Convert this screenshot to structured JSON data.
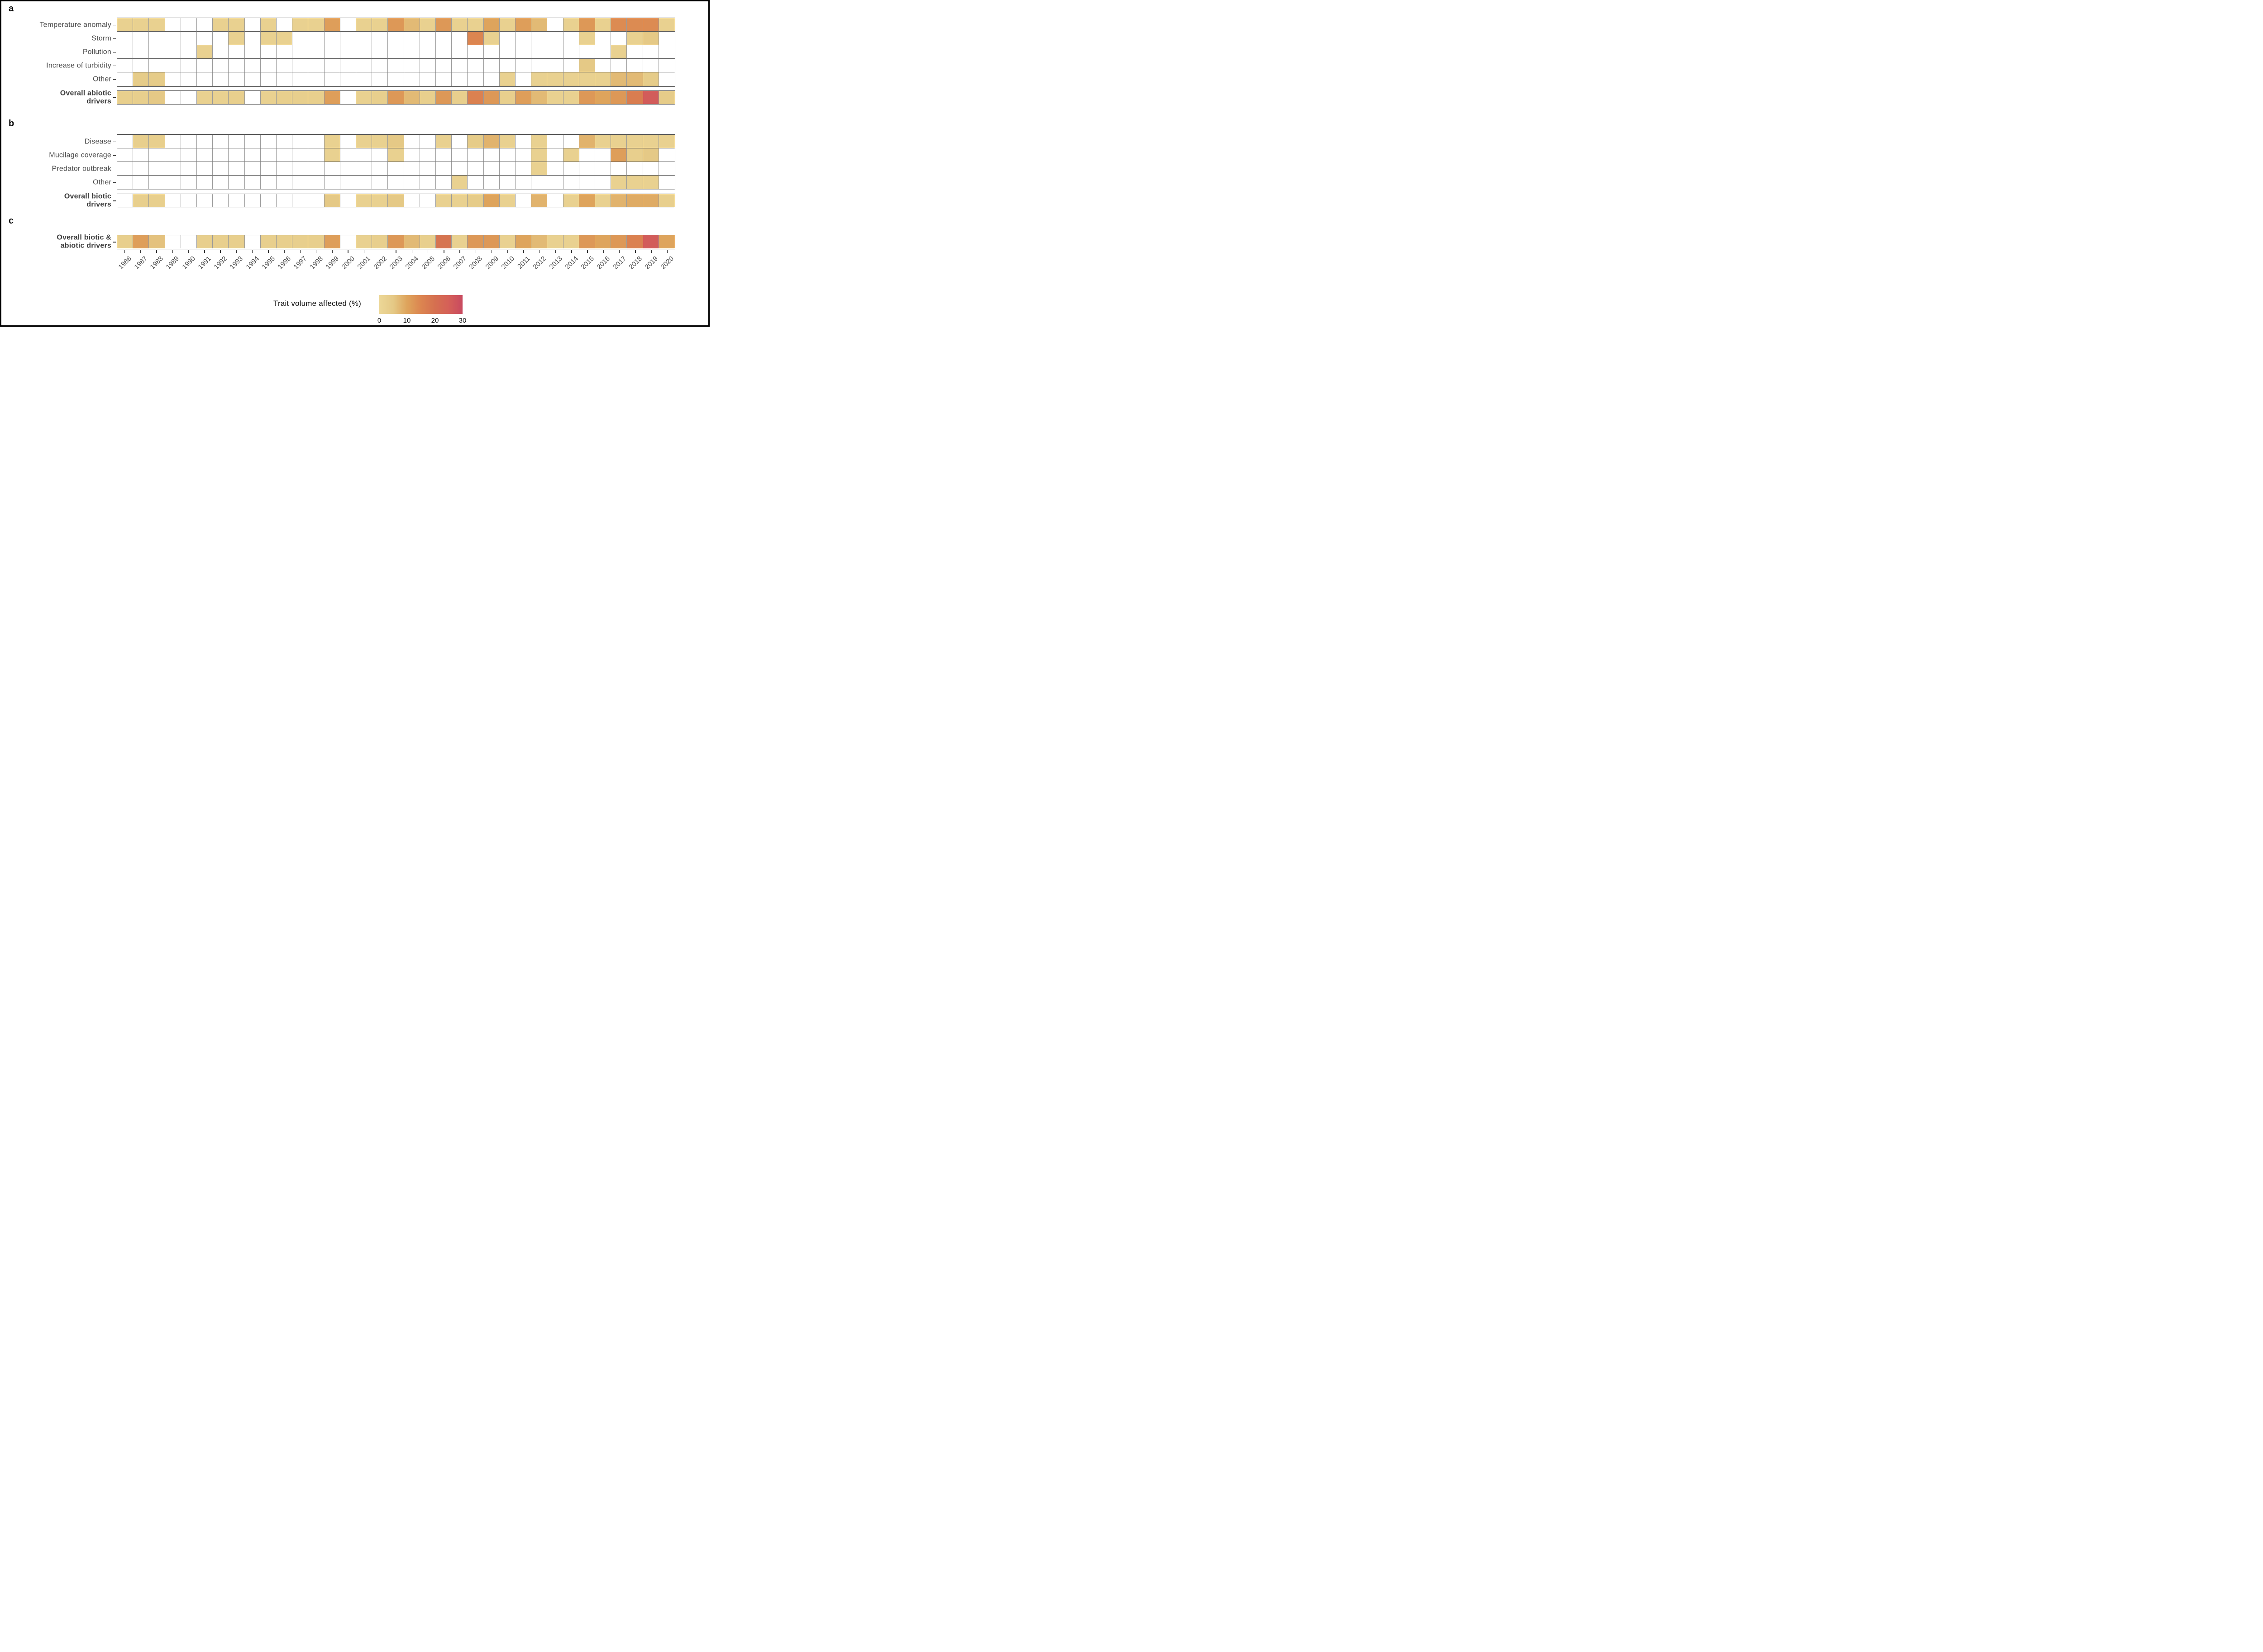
{
  "legend": {
    "title": "Trait volume affected (%)",
    "ticks": [
      "0",
      "10",
      "20",
      "30"
    ],
    "tick_values": [
      0,
      10,
      20,
      30
    ],
    "min": 0,
    "max": 30,
    "gradient_stops": [
      {
        "value": 0,
        "color": "#ECD797"
      },
      {
        "value": 5,
        "color": "#E5C986"
      },
      {
        "value": 10,
        "color": "#DEA45C"
      },
      {
        "value": 15,
        "color": "#DC8550"
      },
      {
        "value": 20,
        "color": "#D57050"
      },
      {
        "value": 25,
        "color": "#D56058"
      },
      {
        "value": 30,
        "color": "#C84A60"
      }
    ]
  },
  "chart_data": {
    "type": "heatmap",
    "title": "",
    "value_unit": "Trait volume affected (%)",
    "value_range": [
      0,
      30
    ],
    "empty_cell_color": "#FFFFFF",
    "x": [
      1986,
      1987,
      1988,
      1989,
      1990,
      1991,
      1992,
      1993,
      1994,
      1995,
      1996,
      1997,
      1998,
      1999,
      2000,
      2001,
      2002,
      2003,
      2004,
      2005,
      2006,
      2007,
      2008,
      2009,
      2010,
      2011,
      2012,
      2013,
      2014,
      2015,
      2016,
      2017,
      2018,
      2019,
      2020
    ],
    "panels": [
      {
        "id": "a",
        "rows": [
          {
            "label": "Temperature anomaly",
            "values": [
              2,
              2,
              2,
              null,
              null,
              null,
              2,
              2,
              null,
              2,
              null,
              2,
              2,
              11,
              null,
              2,
              2,
              12,
              7,
              2,
              12,
              2,
              2,
              10,
              2,
              11,
              7,
              null,
              2,
              12,
              2,
              14,
              14,
              14,
              2
            ]
          },
          {
            "label": "Storm",
            "values": [
              null,
              null,
              null,
              null,
              null,
              null,
              null,
              2,
              null,
              2,
              2,
              null,
              null,
              null,
              null,
              null,
              null,
              null,
              null,
              null,
              null,
              null,
              15,
              2,
              null,
              null,
              null,
              null,
              null,
              2,
              null,
              null,
              2,
              5,
              null
            ]
          },
          {
            "label": "Pollution",
            "values": [
              null,
              null,
              null,
              null,
              null,
              2,
              null,
              null,
              null,
              null,
              null,
              null,
              null,
              null,
              null,
              null,
              null,
              null,
              null,
              null,
              null,
              null,
              null,
              null,
              null,
              null,
              null,
              null,
              null,
              null,
              null,
              2,
              null,
              null,
              null
            ]
          },
          {
            "label": "Increase of turbidity",
            "values": [
              null,
              null,
              null,
              null,
              null,
              null,
              null,
              null,
              null,
              null,
              null,
              null,
              null,
              null,
              null,
              null,
              null,
              null,
              null,
              null,
              null,
              null,
              null,
              null,
              null,
              null,
              null,
              null,
              null,
              5,
              null,
              null,
              null,
              null,
              null
            ]
          },
          {
            "label": "Other",
            "values": [
              null,
              4,
              4,
              null,
              null,
              null,
              null,
              null,
              null,
              null,
              null,
              null,
              null,
              null,
              null,
              null,
              null,
              null,
              null,
              null,
              null,
              null,
              null,
              null,
              2,
              null,
              2,
              2,
              2,
              2,
              2,
              7,
              7,
              4,
              null
            ]
          }
        ],
        "summary_row": {
          "label": "Overall abiotic drivers",
          "label_lines": [
            "Overall abiotic",
            "drivers"
          ],
          "values": [
            3,
            3,
            5,
            null,
            null,
            2,
            2,
            3,
            null,
            2,
            3,
            3,
            3,
            11,
            null,
            2,
            3,
            12,
            7,
            3,
            12,
            3,
            16,
            12,
            3,
            11,
            7,
            2,
            2,
            12,
            10,
            12,
            17,
            26,
            4
          ]
        }
      },
      {
        "id": "b",
        "rows": [
          {
            "label": "Disease",
            "values": [
              null,
              3,
              3,
              null,
              null,
              null,
              null,
              null,
              null,
              null,
              null,
              null,
              null,
              2,
              null,
              2,
              2,
              5,
              null,
              null,
              2,
              null,
              4,
              8,
              2,
              null,
              2,
              null,
              null,
              8,
              2,
              2,
              2,
              2,
              2
            ]
          },
          {
            "label": "Mucilage coverage",
            "values": [
              null,
              null,
              null,
              null,
              null,
              null,
              null,
              null,
              null,
              null,
              null,
              null,
              null,
              2,
              null,
              null,
              null,
              2,
              null,
              null,
              null,
              null,
              null,
              null,
              null,
              null,
              2,
              null,
              2,
              null,
              null,
              11,
              3,
              5,
              null
            ]
          },
          {
            "label": "Predator outbreak",
            "values": [
              null,
              null,
              null,
              null,
              null,
              null,
              null,
              null,
              null,
              null,
              null,
              null,
              null,
              null,
              null,
              null,
              null,
              null,
              null,
              null,
              null,
              null,
              null,
              null,
              null,
              null,
              2,
              null,
              null,
              null,
              null,
              null,
              null,
              null,
              null
            ]
          },
          {
            "label": "Other",
            "values": [
              null,
              null,
              null,
              null,
              null,
              null,
              null,
              null,
              null,
              null,
              null,
              null,
              null,
              null,
              null,
              null,
              null,
              null,
              null,
              null,
              null,
              2,
              null,
              null,
              null,
              null,
              null,
              null,
              null,
              null,
              null,
              2,
              2,
              2,
              null
            ]
          }
        ],
        "summary_row": {
          "label": "Overall biotic drivers",
          "label_lines": [
            "Overall biotic",
            "drivers"
          ],
          "values": [
            null,
            3,
            3,
            null,
            null,
            null,
            null,
            null,
            null,
            null,
            null,
            null,
            null,
            5,
            null,
            2,
            2,
            5,
            null,
            null,
            2,
            2,
            4,
            10,
            2,
            null,
            8,
            null,
            2,
            10,
            2,
            8,
            9,
            9,
            3
          ]
        }
      },
      {
        "id": "c",
        "rows": [],
        "summary_row": {
          "label": "Overall biotic & abiotic drivers",
          "label_lines": [
            "Overall biotic &",
            "abiotic drivers"
          ],
          "values": [
            3,
            11,
            6,
            null,
            null,
            3,
            3,
            3,
            null,
            3,
            3,
            3,
            3,
            11,
            null,
            2,
            3,
            12,
            7,
            3,
            19,
            2,
            12,
            12,
            2,
            10,
            7,
            2,
            2,
            12,
            10,
            12,
            16,
            26,
            10
          ]
        }
      }
    ]
  }
}
